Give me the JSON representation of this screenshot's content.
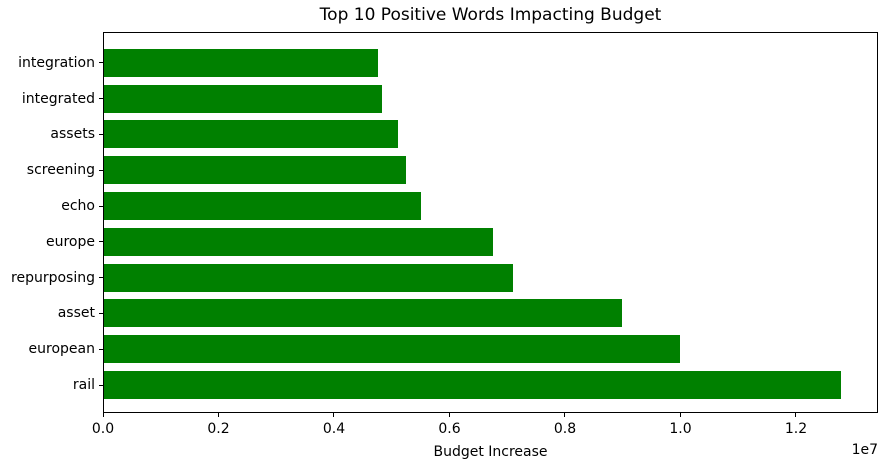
{
  "figure": {
    "background_color": "#ffffff",
    "text_color": "#000000",
    "spine_color": "#000000"
  },
  "chart_data": {
    "type": "bar",
    "orientation": "horizontal",
    "title": "Top 10 Positive Words Impacting Budget",
    "xlabel": "Budget Increase",
    "ylabel": "",
    "categories": [
      "integration",
      "integrated",
      "assets",
      "screening",
      "echo",
      "europe",
      "repurposing",
      "asset",
      "european",
      "rail"
    ],
    "values": [
      4750000,
      4830000,
      5100000,
      5250000,
      5500000,
      6750000,
      7100000,
      9000000,
      10000000,
      12800000
    ],
    "bar_color": "#008000",
    "bar_height_fraction": 0.8,
    "xlim": [
      0,
      13420000
    ],
    "x_ticks": [
      0,
      2000000,
      4000000,
      6000000,
      8000000,
      10000000,
      12000000
    ],
    "x_tick_labels": [
      "0.0",
      "0.2",
      "0.4",
      "0.6",
      "0.8",
      "1.0",
      "1.2"
    ],
    "offset_text": "1e7",
    "grid": false,
    "legend": false
  }
}
